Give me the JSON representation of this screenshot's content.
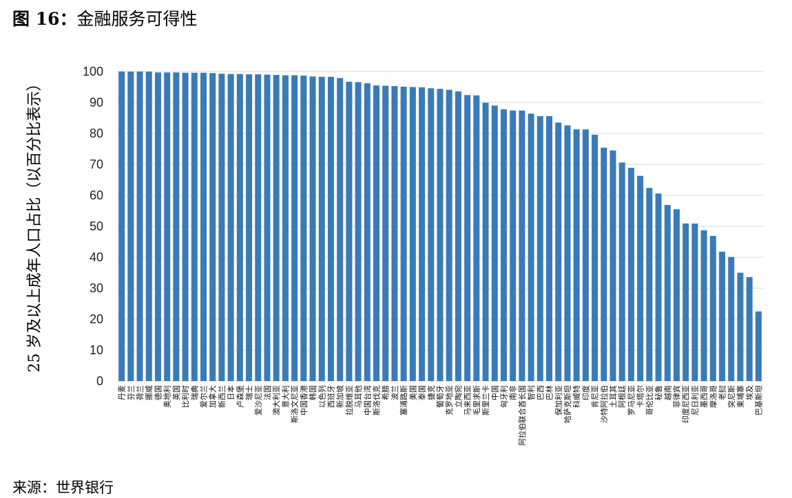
{
  "figure": {
    "label": "图 16：",
    "title": "金融服务可得性",
    "source": "来源：世界银行"
  },
  "chart_data": {
    "type": "bar",
    "ylabel": "25 岁及以上成年人口占比（以百分比表示）",
    "xlabel": "",
    "ylim": [
      0,
      100
    ],
    "yticks": [
      0,
      10,
      20,
      30,
      40,
      50,
      60,
      70,
      80,
      90,
      100
    ],
    "grid": true,
    "bar_color": "#3a7ab8",
    "grid_color": "#d9d9d9",
    "categories": [
      "丹麦",
      "芬兰",
      "荷兰",
      "挪威",
      "德国",
      "奥地利",
      "英国",
      "比利时",
      "瑞典",
      "爱尔兰",
      "加拿大",
      "新西兰",
      "日本",
      "卢森堡",
      "瑞士",
      "爱沙尼亚",
      "法国",
      "澳大利亚",
      "意大利",
      "斯洛文尼亚",
      "中国香港",
      "韩国",
      "以色列",
      "西班牙",
      "新加坡",
      "拉脱维亚",
      "马耳他",
      "中国台湾",
      "斯洛伐克",
      "希腊",
      "波兰",
      "塞浦路斯",
      "美国",
      "泰国",
      "捷克",
      "葡萄牙",
      "克罗地亚",
      "立陶宛",
      "马来西亚",
      "毛里求斯",
      "斯里兰卡",
      "中国",
      "匈牙利",
      "南非",
      "阿拉伯联合酋长国",
      "智利",
      "巴西",
      "巴林",
      "保加利亚",
      "哈萨克斯坦",
      "科威特",
      "印度",
      "肯尼亚",
      "沙特阿拉伯",
      "土耳其",
      "阿根廷",
      "罗马尼亚",
      "卡塔尔",
      "哥伦比亚",
      "秘鲁",
      "越南",
      "菲律宾",
      "印度尼西亚",
      "尼日利亚",
      "墨西哥",
      "摩洛哥",
      "老挝",
      "突尼斯",
      "柬埔寨",
      "埃及",
      "巴基斯坦"
    ],
    "values": [
      100,
      100,
      100,
      100,
      99.7,
      99.7,
      99.7,
      99.6,
      99.6,
      99.6,
      99.5,
      99.3,
      99.2,
      99.2,
      99.1,
      99.1,
      99.0,
      98.9,
      98.8,
      98.8,
      98.7,
      98.4,
      98.3,
      98.3,
      97.9,
      96.7,
      96.6,
      96.2,
      95.5,
      95.4,
      95.3,
      95.1,
      95.0,
      94.9,
      94.6,
      94.4,
      94.1,
      93.6,
      92.4,
      92.3,
      89.9,
      89.0,
      87.8,
      87.4,
      87.4,
      86.4,
      85.6,
      85.6,
      83.5,
      82.6,
      81.3,
      81.3,
      79.6,
      75.4,
      74.5,
      70.6,
      68.9,
      66.3,
      62.4,
      60.6,
      56.9,
      55.5,
      50.9,
      50.9,
      48.7,
      46.9,
      41.8,
      40.1,
      35.0,
      33.6,
      22.5
    ]
  }
}
